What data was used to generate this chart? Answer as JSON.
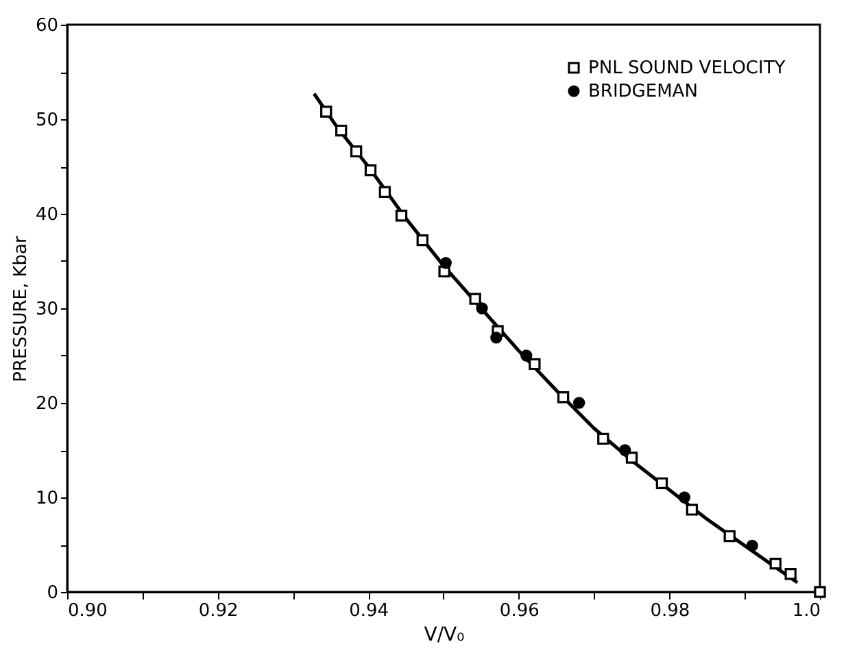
{
  "chart_data": {
    "type": "scatter",
    "xlabel": "V/V₀",
    "ylabel": "PRESSURE, Kbar",
    "xlim": [
      0.9,
      1.0
    ],
    "ylim": [
      0,
      60
    ],
    "xticks": [
      {
        "value": 0.9,
        "label": "0.90"
      },
      {
        "value": 0.91,
        "label": null
      },
      {
        "value": 0.92,
        "label": "0.92"
      },
      {
        "value": 0.93,
        "label": null
      },
      {
        "value": 0.94,
        "label": "0.94"
      },
      {
        "value": 0.95,
        "label": null
      },
      {
        "value": 0.96,
        "label": "0.96"
      },
      {
        "value": 0.97,
        "label": null
      },
      {
        "value": 0.98,
        "label": "0.98"
      },
      {
        "value": 0.99,
        "label": null
      },
      {
        "value": 1.0,
        "label": "1.0"
      }
    ],
    "yticks": [
      0,
      {
        "value": 5,
        "label": null
      },
      10,
      {
        "value": 15,
        "label": null
      },
      20,
      {
        "value": 25,
        "label": null
      },
      30,
      {
        "value": 35,
        "label": null
      },
      40,
      {
        "value": 45,
        "label": null
      },
      50,
      {
        "value": 55,
        "label": null
      },
      60
    ],
    "grid": false,
    "legend": "top right",
    "series": [
      {
        "name": "PNL SOUND VELOCITY",
        "color": "#000000",
        "marker": "square",
        "x": [
          0.9344,
          0.9364,
          0.9384,
          0.9403,
          0.9422,
          0.9444,
          0.9472,
          0.9501,
          0.9542,
          0.9572,
          0.9621,
          0.9659,
          0.9712,
          0.975,
          0.979,
          0.983,
          0.988,
          0.9941,
          0.9961,
          1.0
        ],
        "values": [
          50.8,
          48.8,
          46.6,
          44.6,
          42.3,
          39.8,
          37.2,
          33.9,
          31.0,
          27.6,
          24.1,
          20.6,
          16.2,
          14.2,
          11.5,
          8.7,
          5.9,
          3.0,
          1.9,
          0
        ]
      },
      {
        "name": "BRIDGEMAN",
        "color": "#000000",
        "marker": "circle",
        "x": [
          0.9503,
          0.9551,
          0.957,
          0.961,
          0.968,
          0.9741,
          0.982,
          0.991
        ],
        "values": [
          34.8,
          30.0,
          26.9,
          25.0,
          20.0,
          15.0,
          10.0,
          4.9
        ]
      },
      {
        "type": "line",
        "color": "#000000",
        "marker": "none",
        "line_style": "solid",
        "x": [
          0.9328,
          0.936,
          0.94,
          0.945,
          0.95,
          0.955,
          0.96,
          0.965,
          0.97,
          0.975,
          0.98,
          0.985,
          0.99,
          0.997
        ],
        "values": [
          52.7,
          49.0,
          45.0,
          39.5,
          34.5,
          30.0,
          25.5,
          21.3,
          17.3,
          13.9,
          10.8,
          7.7,
          4.9,
          1.0
        ]
      }
    ]
  }
}
